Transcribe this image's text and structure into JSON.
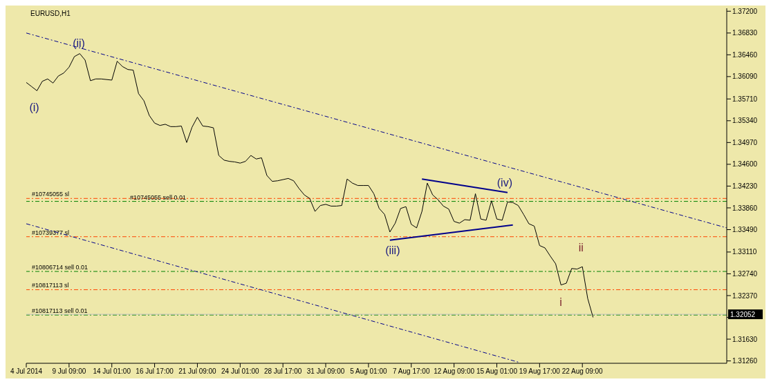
{
  "chart_data": {
    "type": "line",
    "title": "EURUSD,H1",
    "marker": "none",
    "categories": [
      "4 Jul 2014",
      null,
      null,
      null,
      null,
      null,
      null,
      null,
      "9 Jul 09:00",
      null,
      null,
      null,
      null,
      null,
      null,
      null,
      "14 Jul 01:00",
      null,
      null,
      null,
      null,
      null,
      null,
      null,
      "16 Jul 17:00",
      null,
      null,
      null,
      null,
      null,
      null,
      null,
      "21 Jul 09:00",
      null,
      null,
      null,
      null,
      null,
      null,
      null,
      "24 Jul 01:00",
      null,
      null,
      null,
      null,
      null,
      null,
      null,
      "28 Jul 17:00",
      null,
      null,
      null,
      null,
      null,
      null,
      null,
      "31 Jul 09:00",
      null,
      null,
      null,
      null,
      null,
      null,
      null,
      "5 Aug 01:00",
      null,
      null,
      null,
      null,
      null,
      null,
      null,
      "7 Aug 17:00",
      null,
      null,
      null,
      null,
      null,
      null,
      null,
      "12 Aug 09:00",
      null,
      null,
      null,
      null,
      null,
      null,
      null,
      "15 Aug 01:00",
      null,
      null,
      null,
      null,
      null,
      null,
      null,
      "19 Aug 17:00",
      null,
      null,
      null,
      null,
      null,
      null,
      null,
      "22 Aug 09:00",
      null,
      null,
      null,
      null,
      null,
      null,
      null,
      null,
      null,
      null,
      null,
      null,
      null,
      null,
      null,
      null,
      null,
      null,
      null,
      null,
      null,
      null,
      null,
      null,
      null,
      null,
      null
    ],
    "ylim": [
      1.3122,
      1.3725
    ],
    "yticks": [
      {
        "value": 1.372,
        "label": "1.37200"
      },
      {
        "value": 1.3683,
        "label": "1.36830"
      },
      {
        "value": 1.3646,
        "label": "1.36460"
      },
      {
        "value": 1.3609,
        "label": "1.36090"
      },
      {
        "value": 1.3571,
        "label": "1.35710"
      },
      {
        "value": 1.3534,
        "label": "1.35340"
      },
      {
        "value": 1.3497,
        "label": "1.34970"
      },
      {
        "value": 1.346,
        "label": "1.34600"
      },
      {
        "value": 1.3423,
        "label": "1.34230"
      },
      {
        "value": 1.3386,
        "label": "1.33860"
      },
      {
        "value": 1.3349,
        "label": "1.33490"
      },
      {
        "value": 1.3311,
        "label": "1.33110"
      },
      {
        "value": 1.3274,
        "label": "1.32740"
      },
      {
        "value": 1.3237,
        "label": "1.32370"
      },
      {
        "value": 1.32,
        "label": null
      },
      {
        "value": 1.3163,
        "label": "1.31630"
      },
      {
        "value": 1.3126,
        "label": "1.31260"
      }
    ],
    "series": [
      {
        "color": "#000000",
        "line_style": "solid",
        "values": [
          1.3599,
          1.3592,
          1.3585,
          1.3601,
          1.3605,
          1.3598,
          1.361,
          1.3615,
          1.3625,
          1.3643,
          1.3648,
          1.3637,
          1.3602,
          1.3605,
          1.3605,
          1.3604,
          1.3603,
          1.3635,
          1.3626,
          1.3621,
          1.362,
          1.358,
          1.3568,
          1.3543,
          1.353,
          1.3526,
          1.3528,
          1.3524,
          1.3524,
          1.3525,
          1.3497,
          1.3523,
          1.354,
          1.3525,
          1.3524,
          1.3522,
          1.3475,
          1.3467,
          1.3465,
          1.3464,
          1.3462,
          1.3465,
          1.3475,
          1.3469,
          1.3471,
          1.3441,
          1.3431,
          1.3432,
          1.3434,
          1.3436,
          1.3432,
          1.3419,
          1.3408,
          1.3402,
          1.338,
          1.339,
          1.3392,
          1.3389,
          1.3389,
          1.339,
          1.3435,
          1.3428,
          1.3424,
          1.3424,
          1.3424,
          1.341,
          1.3385,
          1.3375,
          1.3345,
          1.336,
          1.3385,
          1.3388,
          1.3358,
          1.3352,
          1.338,
          1.3428,
          1.3408,
          1.34,
          1.3389,
          1.3384,
          1.3363,
          1.336,
          1.3366,
          1.3365,
          1.341,
          1.3367,
          1.3365,
          1.3398,
          1.3367,
          1.3365,
          1.3396,
          1.3395,
          1.339,
          1.3375,
          1.3359,
          1.3355,
          1.3322,
          1.3318,
          1.3304,
          1.3291,
          1.3255,
          1.3258,
          1.3283,
          1.3282,
          1.3286,
          1.3232,
          1.32,
          null,
          null,
          null,
          null,
          null,
          null,
          null,
          null,
          null,
          null,
          null,
          null,
          null,
          null,
          null,
          null,
          null,
          null,
          null,
          null,
          null,
          null,
          null,
          null,
          null
        ]
      },
      {
        "color": "#00008b",
        "line_style": "dashed",
        "values": [
          1.3683,
          null,
          null,
          null,
          null,
          null,
          null,
          null,
          null,
          null,
          null,
          null,
          null,
          null,
          null,
          null,
          null,
          null,
          null,
          null,
          null,
          null,
          null,
          null,
          null,
          null,
          null,
          null,
          null,
          null,
          null,
          null,
          null,
          null,
          null,
          null,
          null,
          null,
          null,
          null,
          null,
          null,
          null,
          null,
          null,
          null,
          null,
          null,
          null,
          null,
          null,
          null,
          null,
          null,
          null,
          null,
          null,
          null,
          null,
          null,
          null,
          null,
          null,
          null,
          null,
          null,
          null,
          null,
          null,
          null,
          null,
          null,
          null,
          null,
          null,
          null,
          null,
          null,
          null,
          null,
          null,
          null,
          null,
          null,
          null,
          null,
          null,
          null,
          null,
          null,
          null,
          null,
          null,
          null,
          null,
          null,
          null,
          null,
          null,
          null,
          null,
          null,
          null,
          null,
          null,
          null,
          null,
          null,
          null,
          null,
          null,
          null,
          null,
          null,
          null,
          null,
          null,
          null,
          null,
          null,
          null,
          null,
          null,
          null,
          null,
          null,
          null,
          null,
          null,
          null,
          null,
          1.3352
        ]
      },
      {
        "color": "#00008b",
        "line_style": "dashed",
        "values": [
          1.3359,
          null,
          null,
          null,
          null,
          null,
          null,
          null,
          null,
          null,
          null,
          null,
          null,
          null,
          null,
          null,
          null,
          null,
          null,
          null,
          null,
          null,
          null,
          null,
          null,
          null,
          null,
          null,
          null,
          null,
          null,
          null,
          null,
          null,
          null,
          null,
          null,
          null,
          null,
          null,
          null,
          null,
          null,
          null,
          null,
          null,
          null,
          null,
          null,
          null,
          null,
          null,
          null,
          null,
          null,
          null,
          null,
          null,
          null,
          null,
          null,
          null,
          null,
          null,
          null,
          null,
          null,
          null,
          null,
          null,
          null,
          null,
          null,
          null,
          null,
          null,
          null,
          null,
          null,
          null,
          null,
          null,
          null,
          null,
          null,
          null,
          null,
          null,
          null,
          null,
          null,
          null,
          1.3124,
          null,
          null,
          null,
          null,
          null,
          null,
          null,
          null,
          null,
          null,
          null,
          null,
          null,
          null,
          null,
          null,
          null,
          null,
          null,
          null,
          null,
          null,
          null,
          null,
          null,
          null,
          null,
          null,
          null,
          null,
          null,
          null,
          null,
          null,
          null,
          null,
          null,
          null,
          null
        ]
      },
      {
        "color": "#00008b",
        "line_style": "solid",
        "values": [
          null,
          null,
          null,
          null,
          null,
          null,
          null,
          null,
          null,
          null,
          null,
          null,
          null,
          null,
          null,
          null,
          null,
          null,
          null,
          null,
          null,
          null,
          null,
          null,
          null,
          null,
          null,
          null,
          null,
          null,
          null,
          null,
          null,
          null,
          null,
          null,
          null,
          null,
          null,
          null,
          null,
          null,
          null,
          null,
          null,
          null,
          null,
          null,
          null,
          null,
          null,
          null,
          null,
          null,
          null,
          null,
          null,
          null,
          null,
          null,
          null,
          null,
          null,
          null,
          null,
          null,
          null,
          null,
          null,
          null,
          null,
          null,
          null,
          null,
          1.3435,
          null,
          null,
          null,
          null,
          null,
          null,
          null,
          null,
          null,
          null,
          null,
          null,
          null,
          null,
          null,
          1.3412,
          null,
          null,
          null,
          null,
          null,
          null,
          null,
          null,
          null,
          null,
          null,
          null,
          null,
          null,
          null,
          null,
          null,
          null,
          null,
          null,
          null,
          null,
          null,
          null,
          null,
          null,
          null,
          null,
          null,
          null,
          null,
          null,
          null,
          null,
          null,
          null,
          null,
          null,
          null,
          null,
          null
        ]
      },
      {
        "color": "#00008b",
        "line_style": "solid",
        "values": [
          null,
          null,
          null,
          null,
          null,
          null,
          null,
          null,
          null,
          null,
          null,
          null,
          null,
          null,
          null,
          null,
          null,
          null,
          null,
          null,
          null,
          null,
          null,
          null,
          null,
          null,
          null,
          null,
          null,
          null,
          null,
          null,
          null,
          null,
          null,
          null,
          null,
          null,
          null,
          null,
          null,
          null,
          null,
          null,
          null,
          null,
          null,
          null,
          null,
          null,
          null,
          null,
          null,
          null,
          null,
          null,
          null,
          null,
          null,
          null,
          null,
          null,
          null,
          null,
          null,
          null,
          null,
          null,
          1.3331,
          null,
          null,
          null,
          null,
          null,
          null,
          null,
          null,
          null,
          null,
          null,
          null,
          null,
          null,
          null,
          null,
          null,
          null,
          null,
          null,
          null,
          null,
          1.3357,
          null,
          null,
          null,
          null,
          null,
          null,
          null,
          null,
          null,
          null,
          null,
          null,
          null,
          null,
          null,
          null,
          null,
          null,
          null,
          null,
          null,
          null,
          null,
          null,
          null,
          null,
          null,
          null,
          null,
          null,
          null,
          null,
          null,
          null,
          null,
          null,
          null,
          null,
          null,
          null
        ]
      }
    ],
    "ref_lines": [
      {
        "axis": "y",
        "value": 1.3402,
        "label": "#10745055 sl",
        "color": "#ff4500",
        "line_style": "dashed"
      },
      {
        "axis": "y",
        "value": 1.3397,
        "label": "#10745055 sell 0.01",
        "color": "#008000",
        "line_style": "dashed"
      },
      {
        "axis": "y",
        "value": 1.3337,
        "label": "#10739377 sl",
        "color": "#ff4500",
        "line_style": "dashed"
      },
      {
        "axis": "y",
        "value": 1.3278,
        "label": "#10806714 sell 0.01",
        "color": "#008000",
        "line_style": "dashed"
      },
      {
        "axis": "y",
        "value": 1.3247,
        "label": "#10817113 sl",
        "color": "#ff4500",
        "line_style": "dashed"
      },
      {
        "axis": "y",
        "value": 1.3204,
        "label": "#10817113 sell 0.01",
        "color": "#008000",
        "line_style": "dashed"
      },
      {
        "axis": "y",
        "value": 1.32052,
        "label": "1.32052",
        "color": "#c0c0c0",
        "line_style": "solid"
      }
    ],
    "annotations": [
      "(i)",
      "(ii)",
      "(iii)",
      "(iv)",
      "i",
      "ii"
    ]
  }
}
